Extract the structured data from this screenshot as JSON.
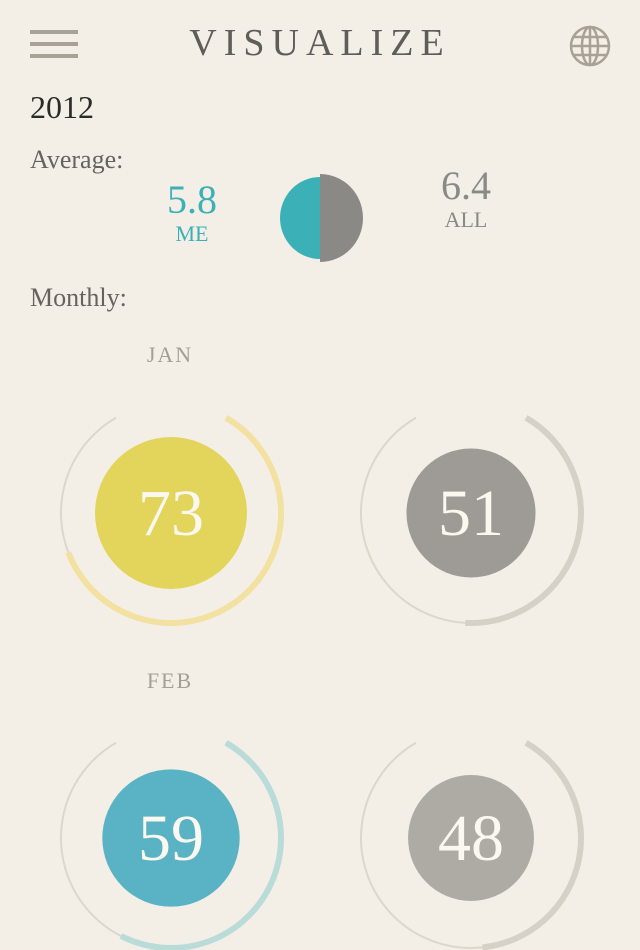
{
  "header": {
    "title": "VISUALIZE",
    "menu_icon": "hamburger-icon",
    "globe_icon": "globe-icon"
  },
  "year": "2012",
  "average": {
    "label": "Average:",
    "me": {
      "value": "5.8",
      "label": "ME",
      "color": "#3bb1b7"
    },
    "all": {
      "value": "6.4",
      "label": "ALL",
      "color": "#8a8986"
    }
  },
  "monthly": {
    "label": "Monthly:",
    "months": [
      {
        "name": "JAN",
        "me": {
          "value": 73,
          "color": "#e3d45c",
          "ring": "#f2e1a0"
        },
        "all": {
          "value": 51,
          "color": "#9e9b96",
          "ring": "#d6d1c6"
        }
      },
      {
        "name": "FEB",
        "me": {
          "value": 59,
          "color": "#5ab3c4",
          "ring": "#b9dcd9"
        },
        "all": {
          "value": 48,
          "color": "#aeaba5",
          "ring": "#d6d1c6"
        }
      }
    ]
  }
}
